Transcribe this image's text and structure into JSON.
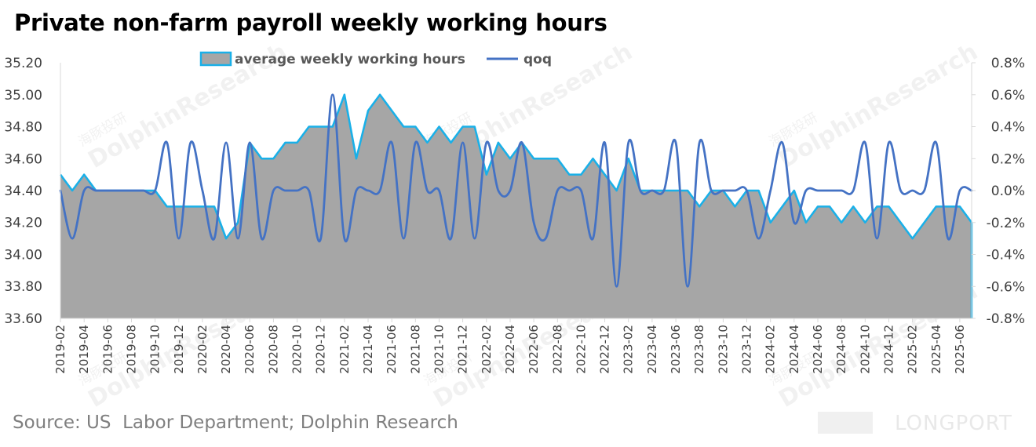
{
  "title": "Private non-farm payroll weekly working hours",
  "source": "Source: US  Labor Department; Dolphin Research",
  "watermark": {
    "name": "DolphinResearch",
    "cn": "海豚投研",
    "logo": "LONGPORT"
  },
  "colors": {
    "area_fill": "#a6a6a6",
    "area_edge": "#1ab0e8",
    "qoq_line": "#4472c4",
    "axis": "#d9d9d9",
    "text": "#404040"
  },
  "chart_data": {
    "type": "area+line",
    "legend_position": "top",
    "grid": false,
    "x": [
      "2019-02",
      "2019-03",
      "2019-04",
      "2019-05",
      "2019-06",
      "2019-07",
      "2019-08",
      "2019-09",
      "2019-10",
      "2019-11",
      "2019-12",
      "2020-01",
      "2020-02",
      "2020-03",
      "2020-04",
      "2020-05",
      "2020-06",
      "2020-07",
      "2020-08",
      "2020-09",
      "2020-10",
      "2020-11",
      "2020-12",
      "2021-01",
      "2021-02",
      "2021-03",
      "2021-04",
      "2021-05",
      "2021-06",
      "2021-07",
      "2021-08",
      "2021-09",
      "2021-10",
      "2021-11",
      "2021-12",
      "2022-01",
      "2022-02",
      "2022-03",
      "2022-04",
      "2022-05",
      "2022-06",
      "2022-07",
      "2022-08",
      "2022-09",
      "2022-10",
      "2022-11",
      "2022-12",
      "2023-01",
      "2023-02",
      "2023-03",
      "2023-04",
      "2023-05",
      "2023-06",
      "2023-07",
      "2023-08",
      "2023-09",
      "2023-10",
      "2023-11",
      "2023-12",
      "2024-01",
      "2024-02",
      "2024-03",
      "2024-04",
      "2024-05",
      "2024-06",
      "2024-07",
      "2024-08",
      "2024-09",
      "2024-10",
      "2024-11",
      "2024-12",
      "2025-01",
      "2025-02",
      "2025-03",
      "2025-04",
      "2025-05",
      "2025-06",
      "2025-07"
    ],
    "x_tick_labels": [
      "2019-02",
      "2019-04",
      "2019-06",
      "2019-08",
      "2019-10",
      "2019-12",
      "2020-02",
      "2020-04",
      "2020-06",
      "2020-08",
      "2020-10",
      "2020-12",
      "2021-02",
      "2021-04",
      "2021-06",
      "2021-08",
      "2021-10",
      "2021-12",
      "2022-02",
      "2022-04",
      "2022-06",
      "2022-08",
      "2022-10",
      "2022-12",
      "2023-02",
      "2023-04",
      "2023-06",
      "2023-08",
      "2023-10",
      "2023-12",
      "2024-02",
      "2024-04",
      "2024-06",
      "2024-08",
      "2024-10",
      "2024-12",
      "2025-02",
      "2025-04",
      "2025-06"
    ],
    "y_left": {
      "min": 33.6,
      "max": 35.2,
      "step": 0.2,
      "tick_labels": [
        "33.60",
        "33.80",
        "34.00",
        "34.20",
        "34.40",
        "34.60",
        "34.80",
        "35.00",
        "35.20"
      ]
    },
    "y_right": {
      "min": -0.8,
      "max": 0.8,
      "step": 0.2,
      "tick_labels": [
        "-0.8%",
        "-0.6%",
        "-0.4%",
        "-0.2%",
        "0.0%",
        "0.2%",
        "0.4%",
        "0.6%",
        "0.8%"
      ]
    },
    "series": [
      {
        "name": "average weekly working hours",
        "axis": "left",
        "kind": "area",
        "values": [
          34.5,
          34.4,
          34.5,
          34.4,
          34.4,
          34.4,
          34.4,
          34.4,
          34.4,
          34.3,
          34.3,
          34.3,
          34.3,
          34.3,
          34.1,
          34.2,
          34.7,
          34.6,
          34.6,
          34.7,
          34.7,
          34.8,
          34.8,
          34.8,
          35.0,
          34.6,
          34.9,
          35.0,
          34.9,
          34.8,
          34.8,
          34.7,
          34.8,
          34.7,
          34.8,
          34.8,
          34.5,
          34.7,
          34.6,
          34.7,
          34.6,
          34.6,
          34.6,
          34.5,
          34.5,
          34.6,
          34.5,
          34.4,
          34.6,
          34.4,
          34.4,
          34.4,
          34.4,
          34.4,
          34.3,
          34.4,
          34.4,
          34.3,
          34.4,
          34.4,
          34.2,
          34.3,
          34.4,
          34.2,
          34.3,
          34.3,
          34.2,
          34.3,
          34.2,
          34.3,
          34.3,
          34.2,
          34.1,
          34.2,
          34.3,
          34.3,
          34.3,
          34.2
        ]
      },
      {
        "name": "qoq",
        "axis": "right",
        "kind": "line",
        "values": [
          0.0,
          -0.3,
          0.0,
          0.0,
          0.0,
          0.0,
          0.0,
          0.0,
          0.0,
          0.3,
          -0.3,
          0.3,
          0.0,
          -0.3,
          0.3,
          -0.3,
          0.3,
          -0.3,
          0.0,
          0.0,
          0.0,
          0.0,
          -0.3,
          0.6,
          -0.3,
          0.0,
          0.0,
          0.0,
          0.3,
          -0.3,
          0.3,
          0.0,
          0.0,
          -0.3,
          0.3,
          -0.3,
          0.3,
          0.0,
          0.0,
          0.3,
          -0.2,
          -0.3,
          0.0,
          0.0,
          0.0,
          -0.3,
          0.3,
          -0.6,
          0.3,
          0.0,
          0.0,
          0.0,
          0.3,
          -0.6,
          0.3,
          0.0,
          0.0,
          0.0,
          0.0,
          -0.3,
          0.0,
          0.3,
          -0.2,
          0.0,
          0.0,
          0.0,
          0.0,
          0.0,
          0.3,
          -0.3,
          0.3,
          0.0,
          0.0,
          0.0,
          0.3,
          -0.3,
          0.0,
          0.0
        ]
      }
    ]
  }
}
